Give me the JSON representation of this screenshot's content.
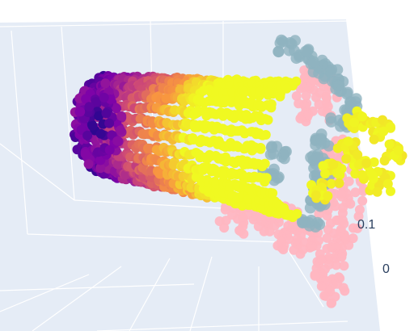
{
  "chart_data": {
    "type": "scatter",
    "dimensions": "3d",
    "title": "",
    "series": [
      {
        "color_scale": [
          "#0d0887",
          "#7e03a8",
          "#cc4778",
          "#f89540",
          "#f0f921"
        ]
      },
      {
        "color": "#ffb6c1"
      },
      {
        "color": "#8fb3bf"
      }
    ],
    "z_tick_labels": [
      "0.1",
      "0"
    ],
    "grid": true,
    "scene_background": "#e5ecf6",
    "grid_color": "#ffffff"
  }
}
